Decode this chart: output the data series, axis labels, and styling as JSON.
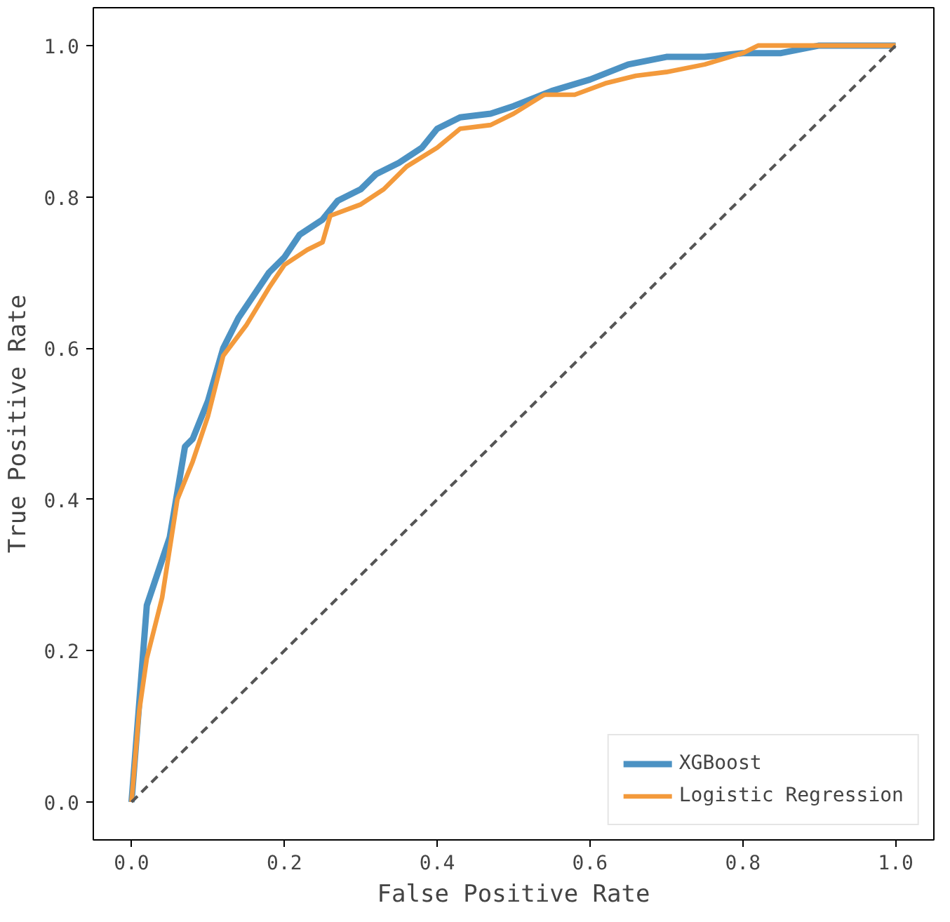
{
  "chart_data": {
    "type": "line",
    "xlabel": "False Positive Rate",
    "ylabel": "True Positive Rate",
    "xlim": [
      -0.05,
      1.05
    ],
    "ylim": [
      -0.05,
      1.05
    ],
    "xticks": [
      {
        "value": 0,
        "label": "0.0"
      },
      {
        "value": 0.2,
        "label": "0.2"
      },
      {
        "value": 0.4,
        "label": "0.4"
      },
      {
        "value": 0.6,
        "label": "0.6"
      },
      {
        "value": 0.8,
        "label": "0.8"
      },
      {
        "value": 1,
        "label": "1.0"
      }
    ],
    "yticks": [
      {
        "value": 0,
        "label": "0.0"
      },
      {
        "value": 0.2,
        "label": "0.2"
      },
      {
        "value": 0.4,
        "label": "0.4"
      },
      {
        "value": 0.6,
        "label": "0.6"
      },
      {
        "value": 0.8,
        "label": "0.8"
      },
      {
        "value": 1,
        "label": "1.0"
      }
    ],
    "grid": false,
    "legend": "bottom right",
    "line_style": "solid",
    "series": [
      {
        "name": "XGBoost",
        "color": "#4c92c3",
        "x": [
          0,
          0.02,
          0.05,
          0.07,
          0.08,
          0.1,
          0.12,
          0.14,
          0.16,
          0.18,
          0.2,
          0.22,
          0.25,
          0.27,
          0.3,
          0.32,
          0.35,
          0.38,
          0.4,
          0.43,
          0.47,
          0.5,
          0.55,
          0.6,
          0.65,
          0.7,
          0.75,
          0.8,
          0.85,
          0.9,
          1
        ],
        "values": [
          0,
          0.26,
          0.35,
          0.47,
          0.48,
          0.53,
          0.6,
          0.64,
          0.67,
          0.7,
          0.72,
          0.75,
          0.77,
          0.795,
          0.81,
          0.83,
          0.845,
          0.865,
          0.89,
          0.905,
          0.91,
          0.92,
          0.94,
          0.955,
          0.975,
          0.985,
          0.985,
          0.99,
          0.99,
          1,
          1
        ]
      },
      {
        "name": "Logistic Regression",
        "color": "#f39a3c",
        "x": [
          0,
          0.01,
          0.02,
          0.04,
          0.06,
          0.08,
          0.1,
          0.12,
          0.15,
          0.18,
          0.2,
          0.23,
          0.25,
          0.26,
          0.3,
          0.33,
          0.36,
          0.4,
          0.43,
          0.47,
          0.5,
          0.54,
          0.58,
          0.62,
          0.66,
          0.7,
          0.75,
          0.8,
          0.82,
          1
        ],
        "values": [
          0,
          0.12,
          0.19,
          0.27,
          0.4,
          0.45,
          0.51,
          0.59,
          0.63,
          0.68,
          0.71,
          0.73,
          0.74,
          0.775,
          0.79,
          0.81,
          0.84,
          0.865,
          0.89,
          0.895,
          0.91,
          0.935,
          0.935,
          0.95,
          0.96,
          0.965,
          0.975,
          0.99,
          1,
          1
        ]
      },
      {
        "color": "#555555",
        "line_style": "dashed",
        "x": [
          0,
          1
        ],
        "values": [
          0,
          1
        ]
      }
    ]
  }
}
